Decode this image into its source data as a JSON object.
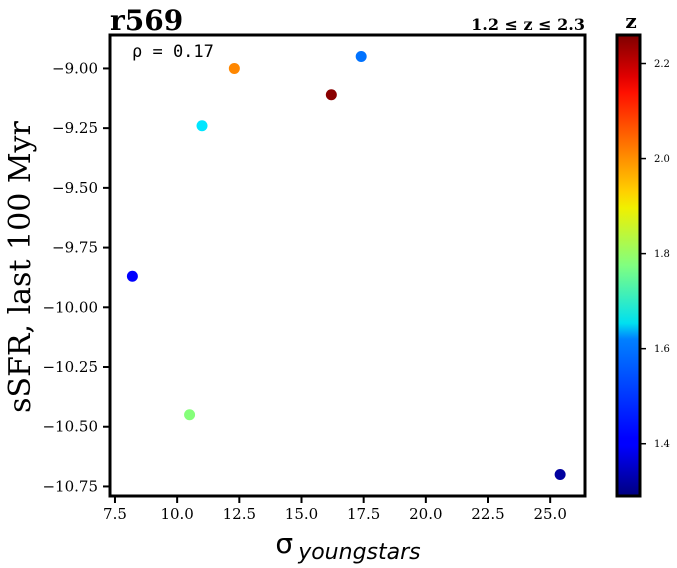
{
  "chart_data": {
    "type": "scatter",
    "title": "r569",
    "subtitle": "1.2 ≤ z ≤ 2.3",
    "annotation": "ρ = 0.17",
    "xlabel_base": "σ",
    "xlabel_sub": "youngstars",
    "ylabel": "sSFR, last 100 Myr",
    "xlim": [
      7.3,
      26.4
    ],
    "ylim": [
      -10.79,
      -8.86
    ],
    "xticks": [
      7.5,
      10.0,
      12.5,
      15.0,
      17.5,
      20.0,
      22.5,
      25.0
    ],
    "xtick_labels": [
      "7.5",
      "10.0",
      "12.5",
      "15.0",
      "17.5",
      "20.0",
      "22.5",
      "25.0"
    ],
    "yticks": [
      -9.0,
      -9.25,
      -9.5,
      -9.75,
      -10.0,
      -10.25,
      -10.5,
      -10.75
    ],
    "ytick_labels": [
      "−9.00",
      "−9.25",
      "−9.50",
      "−9.75",
      "−10.00",
      "−10.25",
      "−10.50",
      "−10.75"
    ],
    "grid": false,
    "points": [
      {
        "x": 8.2,
        "y": -9.87,
        "z": 1.41
      },
      {
        "x": 10.5,
        "y": -10.45,
        "z": 1.78
      },
      {
        "x": 11.0,
        "y": -9.24,
        "z": 1.63
      },
      {
        "x": 12.3,
        "y": -9.0,
        "z": 2.01
      },
      {
        "x": 16.2,
        "y": -9.11,
        "z": 2.25
      },
      {
        "x": 17.4,
        "y": -8.95,
        "z": 1.52
      },
      {
        "x": 25.4,
        "y": -10.7,
        "z": 1.32
      }
    ],
    "colorbar": {
      "label": "z",
      "range": [
        1.29,
        2.26
      ],
      "ticks": [
        1.4,
        1.6,
        1.8,
        2.0,
        2.2
      ],
      "tick_labels": [
        "1.4",
        "1.6",
        "1.8",
        "2.0",
        "2.2"
      ],
      "colormap": "jet"
    }
  }
}
